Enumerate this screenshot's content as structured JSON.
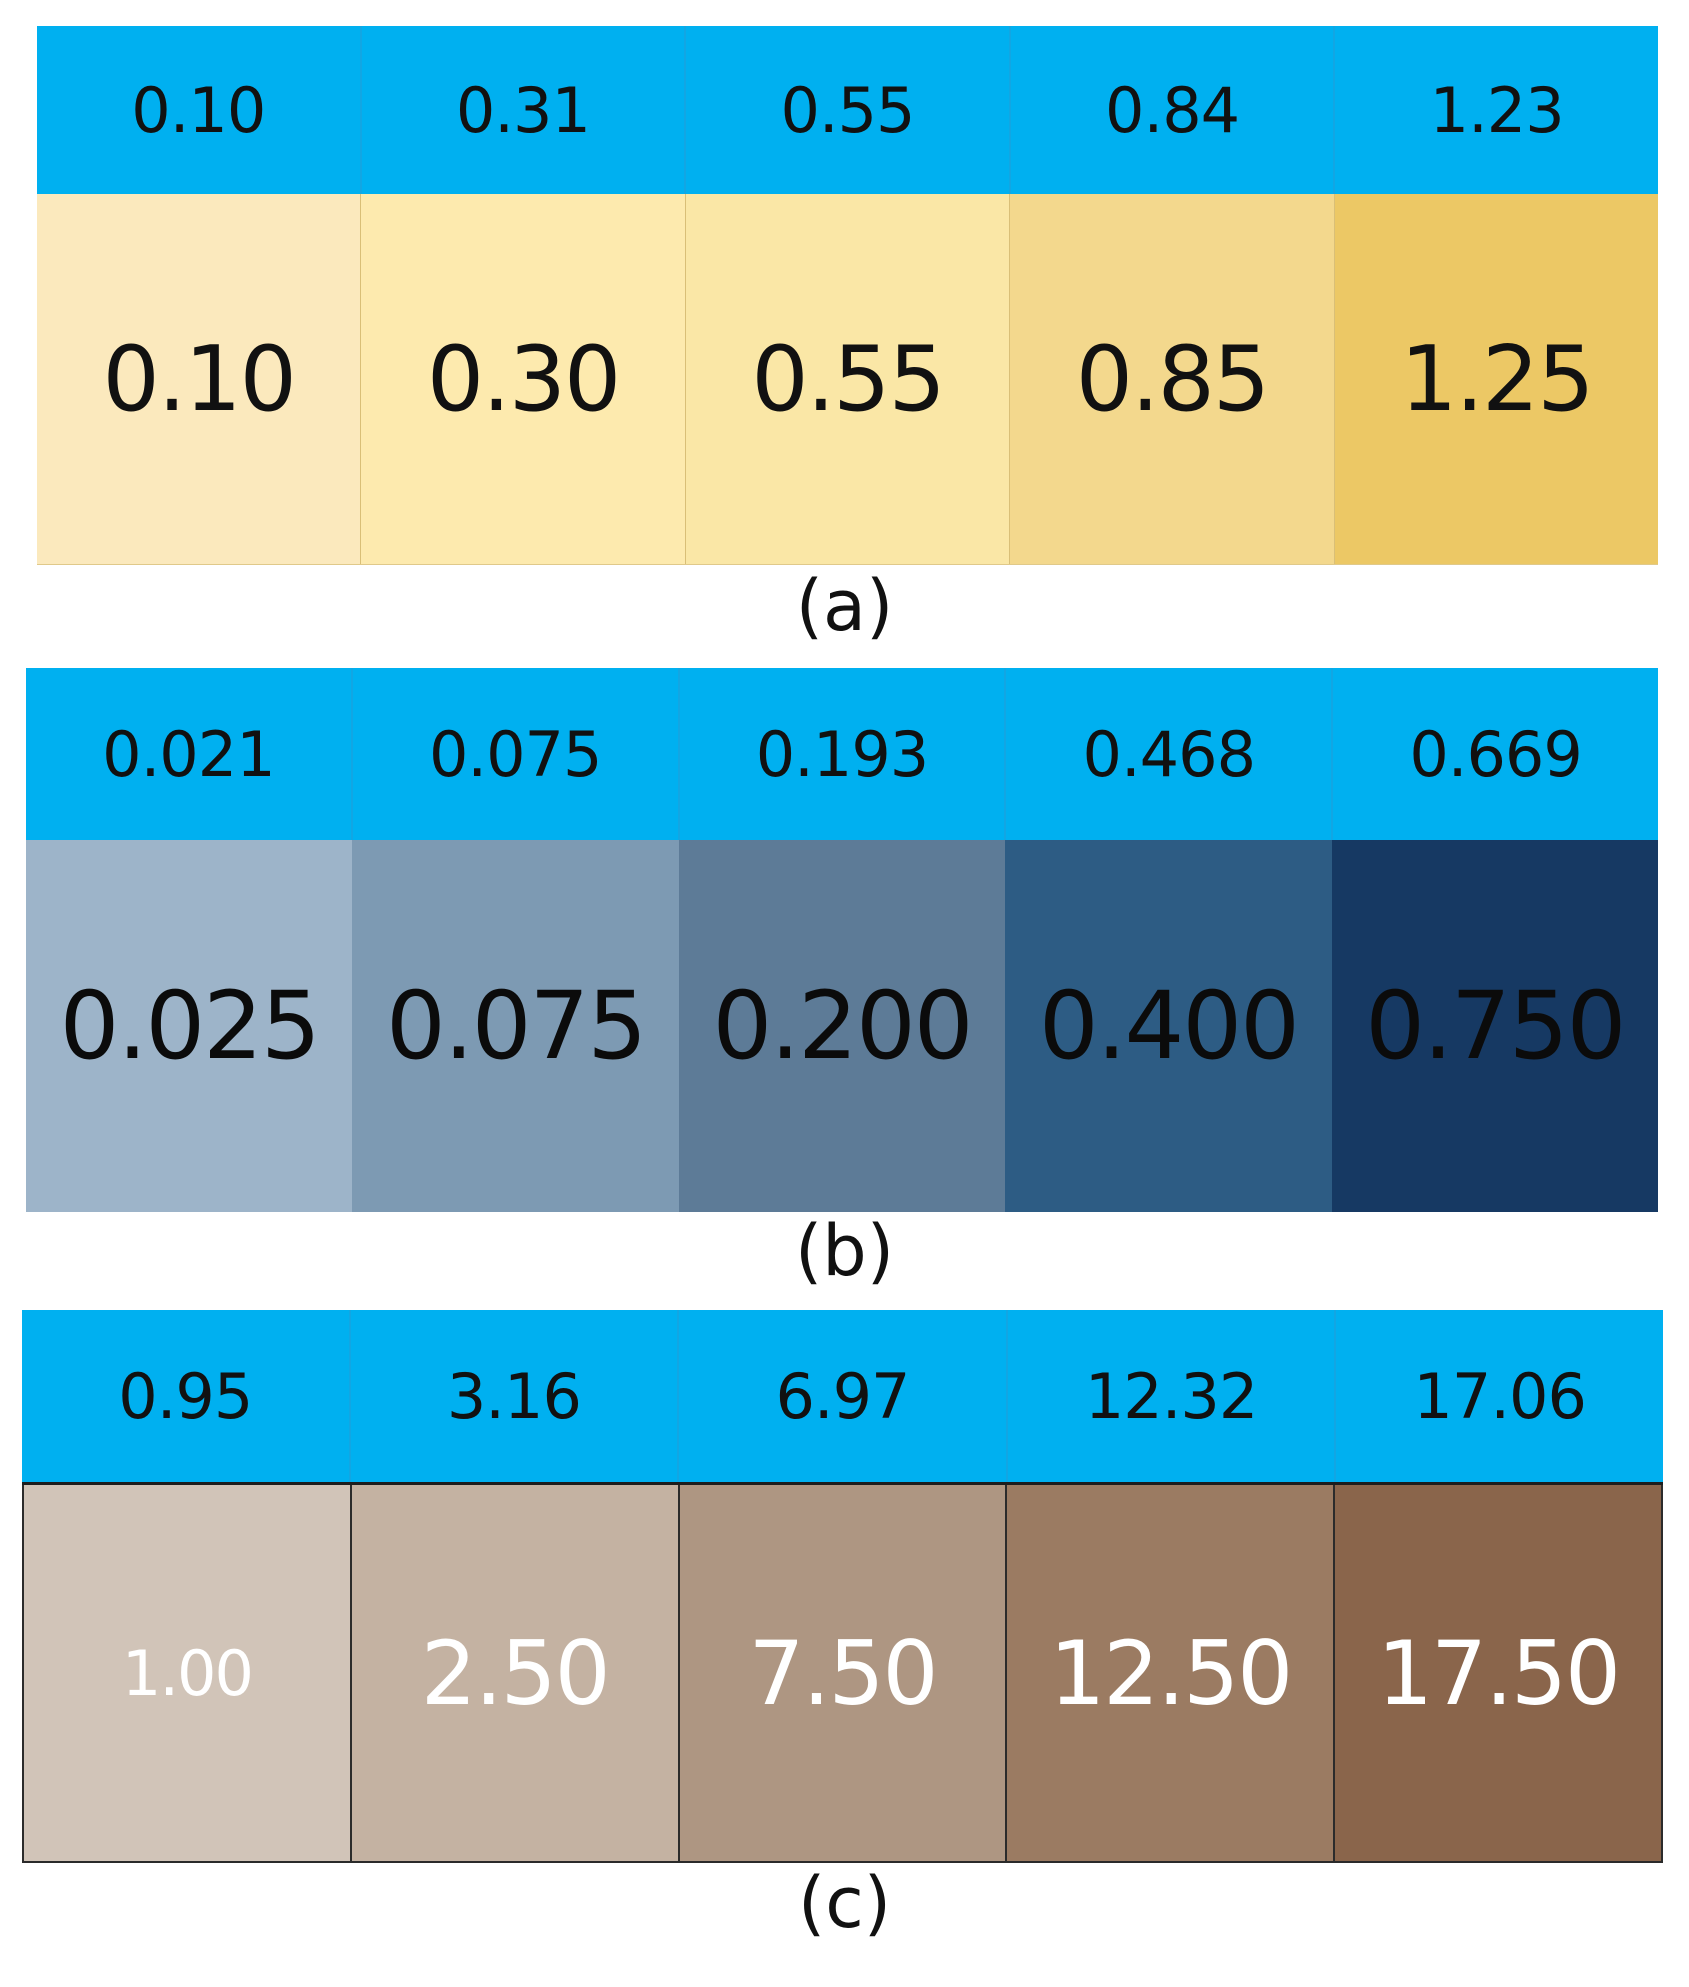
{
  "panels": [
    {
      "caption": "(a)",
      "header_values": [
        "0.10",
        "0.31",
        "0.55",
        "0.84",
        "1.23"
      ],
      "swatch_values": [
        "0.10",
        "0.30",
        "0.55",
        "0.85",
        "1.25"
      ],
      "swatch_colors": [
        "#fbe9bd",
        "#fdeaae",
        "#fae7a6",
        "#f3d88d",
        "#ecc865"
      ],
      "header_color": "#00B0F0"
    },
    {
      "caption": "(b)",
      "header_values": [
        "0.021",
        "0.075",
        "0.193",
        "0.468",
        "0.669"
      ],
      "swatch_values": [
        "0.025",
        "0.075",
        "0.200",
        "0.400",
        "0.750"
      ],
      "swatch_colors": [
        "#9db4c9",
        "#7d9ab3",
        "#5d7b97",
        "#2d5c84",
        "#163963"
      ],
      "header_color": "#00B0F0"
    },
    {
      "caption": "(c)",
      "header_values": [
        "0.95",
        "3.16",
        "6.97",
        "12.32",
        "17.06"
      ],
      "swatch_values": [
        "1.00",
        "2.50",
        "7.50",
        "12.50",
        "17.50"
      ],
      "swatch_colors": [
        "#d1c4b8",
        "#c4b2a2",
        "#ae9682",
        "#9b7b62",
        "#8a654b"
      ],
      "header_color": "#00B0F0"
    }
  ]
}
